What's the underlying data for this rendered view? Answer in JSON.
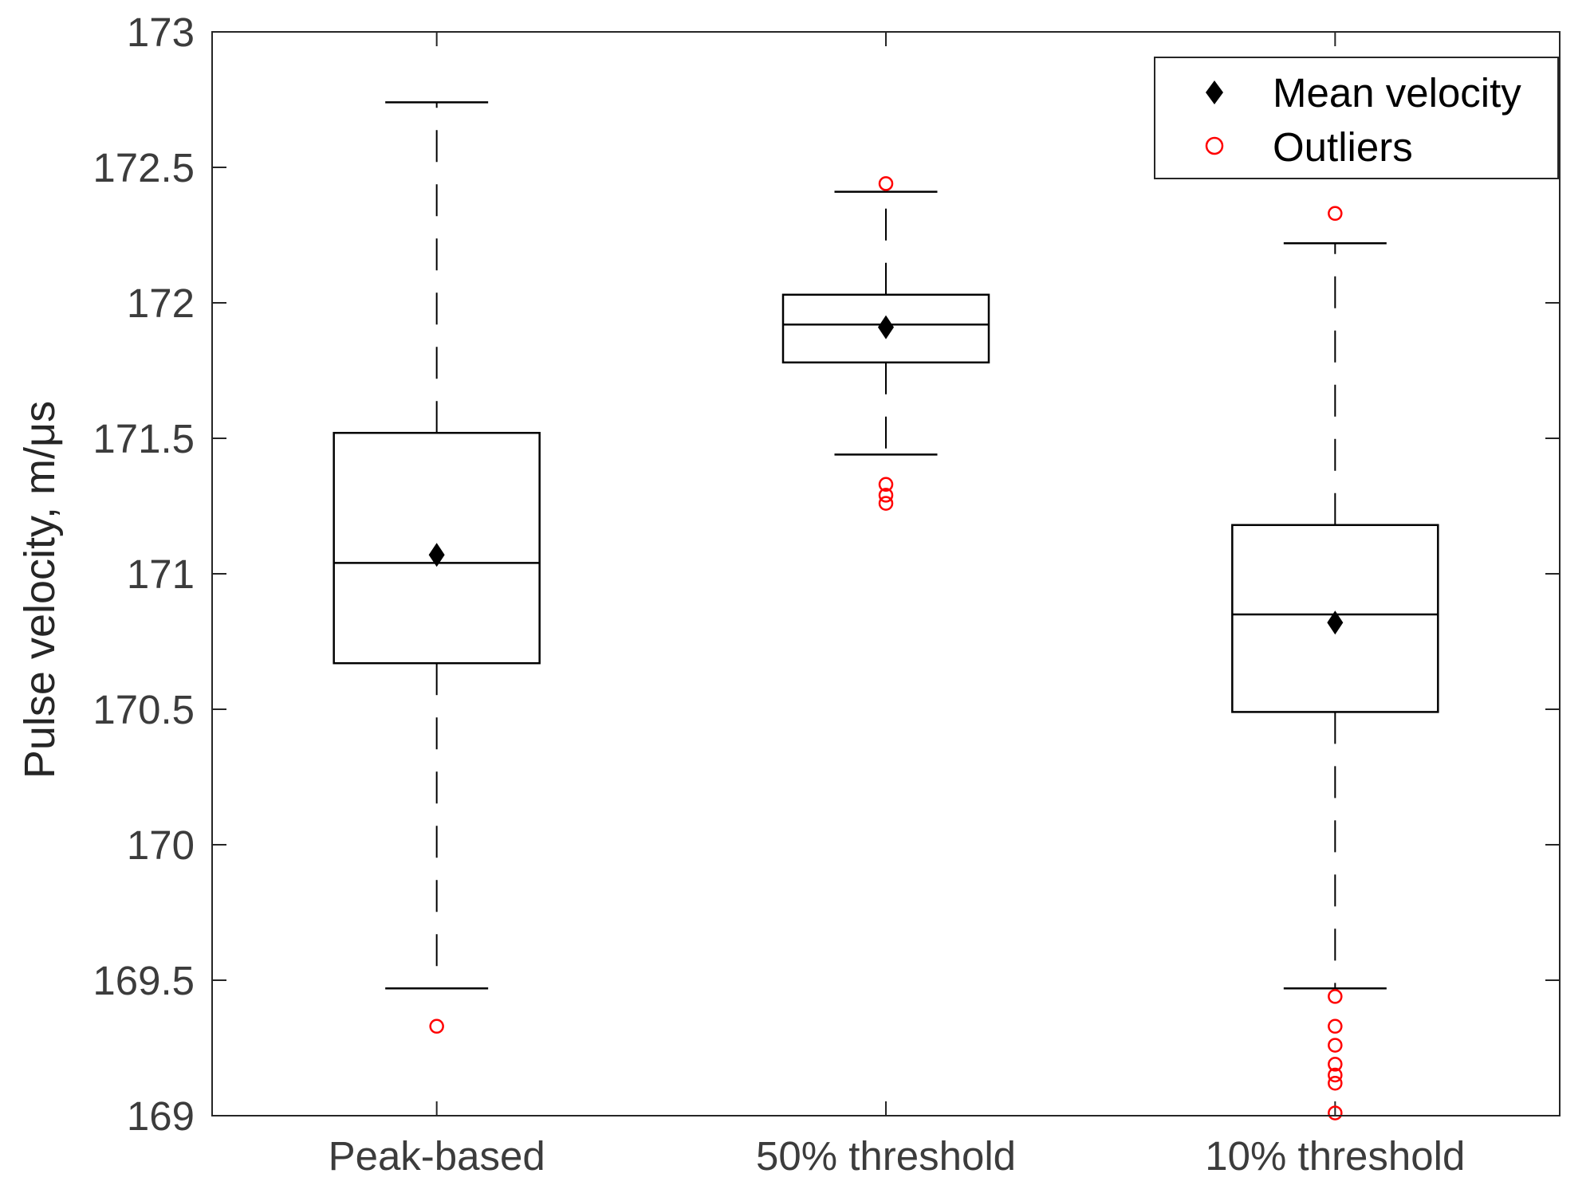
{
  "chart_data": {
    "type": "box",
    "title": "",
    "xlabel": "",
    "ylabel": "Pulse velocity, m/μs",
    "ylim": [
      169,
      173
    ],
    "yticks": [
      169,
      169.5,
      170,
      170.5,
      171,
      171.5,
      172,
      172.5,
      173
    ],
    "ytick_labels": [
      "169",
      "169.5",
      "170",
      "170.5",
      "171",
      "171.5",
      "172",
      "172.5",
      "173"
    ],
    "categories": [
      "Peak-based",
      "50% threshold",
      "10% threshold"
    ],
    "boxes": [
      {
        "name": "Peak-based",
        "whisker_low": 169.47,
        "q1": 170.67,
        "median": 171.04,
        "q3": 171.52,
        "whisker_high": 172.74,
        "mean": 171.07,
        "outliers": [
          169.33
        ]
      },
      {
        "name": "50% threshold",
        "whisker_low": 171.44,
        "q1": 171.78,
        "median": 171.92,
        "q3": 172.03,
        "whisker_high": 172.41,
        "mean": 171.91,
        "outliers": [
          172.44,
          171.33,
          171.29,
          171.26
        ]
      },
      {
        "name": "10% threshold",
        "whisker_low": 169.47,
        "q1": 170.49,
        "median": 170.85,
        "q3": 171.18,
        "whisker_high": 172.22,
        "mean": 170.82,
        "outliers": [
          172.33,
          169.44,
          169.33,
          169.26,
          169.19,
          169.15,
          169.12,
          169.01
        ]
      }
    ],
    "legend": {
      "position": "top-right",
      "entries": [
        {
          "label": "Mean velocity",
          "marker": "diamond",
          "color": "#000000"
        },
        {
          "label": "Outliers",
          "marker": "circle",
          "color": "#ff0000"
        }
      ]
    },
    "colors": {
      "box": "#000000",
      "mean": "#000000",
      "outlier": "#ff0000",
      "axis": "#262626"
    }
  }
}
